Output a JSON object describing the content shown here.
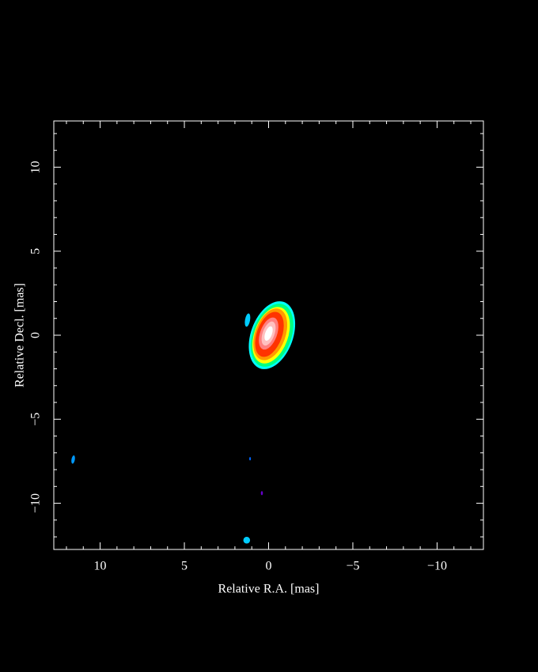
{
  "chart_data": {
    "type": "image",
    "x_label": "Relative R.A. [mas]",
    "y_label": "Relative Decl. [mas]",
    "xlim": [
      12.75,
      -12.75
    ],
    "ylim": [
      -12.75,
      12.75
    ],
    "xticks": [
      10,
      5,
      0,
      {
        "value": -5,
        "label": "−5"
      },
      {
        "value": -10,
        "label": "−10"
      }
    ],
    "yticks": [
      {
        "value": -10,
        "label": "−10"
      },
      {
        "value": -5,
        "label": "−5"
      },
      0,
      5,
      10
    ],
    "xminorticks": [
      12,
      11,
      9,
      8,
      7,
      6,
      4,
      3,
      2,
      1,
      -1,
      -2,
      -3,
      -4,
      -6,
      -7,
      -8,
      -9,
      -11,
      -12
    ],
    "yminorticks": [
      -12,
      -11,
      -9,
      -8,
      -7,
      -6,
      -4,
      -3,
      -2,
      -1,
      1,
      2,
      3,
      4,
      6,
      7,
      8,
      9,
      11,
      12
    ],
    "features": [
      {
        "x": -0.2,
        "y": 0.0,
        "rx": 1.25,
        "ry": 2.1,
        "angle": 20,
        "color": "#00ffff"
      },
      {
        "x": -0.2,
        "y": 0.0,
        "rx": 1.15,
        "ry": 1.95,
        "angle": 20,
        "color": "#00ff80"
      },
      {
        "x": -0.15,
        "y": 0.0,
        "rx": 1.0,
        "ry": 1.75,
        "angle": 20,
        "color": "#ffff00"
      },
      {
        "x": -0.1,
        "y": 0.05,
        "rx": 0.9,
        "ry": 1.6,
        "angle": 20,
        "color": "#ff9900"
      },
      {
        "x": -0.05,
        "y": 0.05,
        "rx": 0.75,
        "ry": 1.4,
        "angle": 20,
        "color": "#ff3300"
      },
      {
        "x": 0.0,
        "y": 0.1,
        "rx": 0.5,
        "ry": 1.0,
        "angle": 20,
        "color": "#ff8080"
      },
      {
        "x": 0.0,
        "y": 0.1,
        "rx": 0.35,
        "ry": 0.75,
        "angle": 20,
        "color": "#ffc0c0"
      },
      {
        "x": 0.0,
        "y": 0.1,
        "rx": 0.2,
        "ry": 0.45,
        "angle": 20,
        "color": "#ffffff"
      },
      {
        "x": 1.25,
        "y": 0.9,
        "rx": 0.15,
        "ry": 0.4,
        "angle": 10,
        "color": "#00ccff"
      },
      {
        "x": 11.6,
        "y": -7.4,
        "rx": 0.1,
        "ry": 0.25,
        "angle": 10,
        "color": "#0099ff"
      },
      {
        "x": 1.1,
        "y": -7.35,
        "rx": 0.05,
        "ry": 0.1,
        "angle": 0,
        "color": "#0066ff"
      },
      {
        "x": 0.4,
        "y": -9.4,
        "rx": 0.06,
        "ry": 0.12,
        "angle": 0,
        "color": "#6600cc"
      },
      {
        "x": 1.3,
        "y": -12.2,
        "rx": 0.2,
        "ry": 0.2,
        "angle": 0,
        "color": "#00ccff"
      }
    ]
  }
}
